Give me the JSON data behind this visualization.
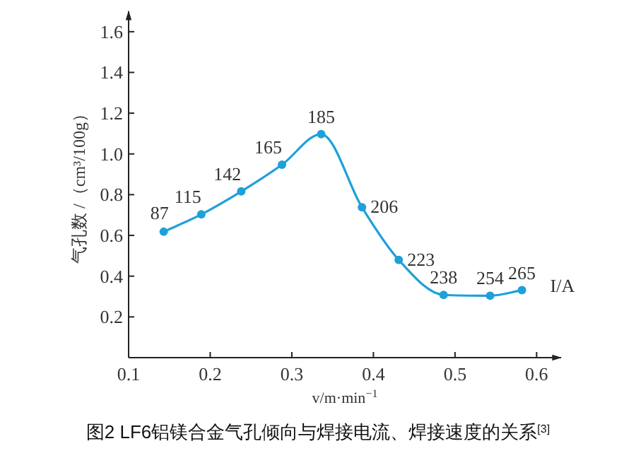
{
  "chart_data": {
    "type": "line",
    "title": "图2 LF6铝镁合金气孔倾向与焊接电流、焊接速度的关系$^{[3]}$",
    "xlabel": "v/m·min$^{−1}$",
    "ylabel": "气孔数 /（cm³/100g）",
    "x": [
      0.143,
      0.189,
      0.238,
      0.288,
      0.336,
      0.386,
      0.431,
      0.486,
      0.543,
      0.582
    ],
    "series": [
      {
        "color": "#1ea0d8",
        "values": [
          0.618,
          0.703,
          0.816,
          0.947,
          1.097,
          0.738,
          0.48,
          0.308,
          0.304,
          0.331
        ]
      }
    ],
    "xlim": [
      0.1,
      0.63
    ],
    "ylim": [
      0,
      1.7
    ],
    "xticks": [
      0.1,
      0.2,
      0.3,
      0.4,
      0.5,
      0.6
    ],
    "yticks": [
      {
        "value": 0,
        "label": null
      },
      0.2,
      0.4,
      0.6,
      0.8,
      {
        "value": 1.0,
        "label": "1.0"
      },
      1.2,
      1.4,
      1.6
    ],
    "marker": "circle",
    "line_style": "solid",
    "grid": false,
    "annotations": [
      {
        "text": "87",
        "x": 0.143,
        "y": 0.618
      },
      {
        "text": "115",
        "x": 0.189,
        "y": 0.703
      },
      {
        "text": "142",
        "x": 0.238,
        "y": 0.816
      },
      {
        "text": "165",
        "x": 0.288,
        "y": 0.947
      },
      {
        "text": "185",
        "x": 0.336,
        "y": 1.097
      },
      {
        "text": "206",
        "x": 0.386,
        "y": 0.738
      },
      {
        "text": "223",
        "x": 0.431,
        "y": 0.48
      },
      {
        "text": "238",
        "x": 0.486,
        "y": 0.308
      },
      {
        "text": "254",
        "x": 0.543,
        "y": 0.304
      },
      {
        "text": "265",
        "x": 0.582,
        "y": 0.331
      },
      "I/A"
    ]
  }
}
